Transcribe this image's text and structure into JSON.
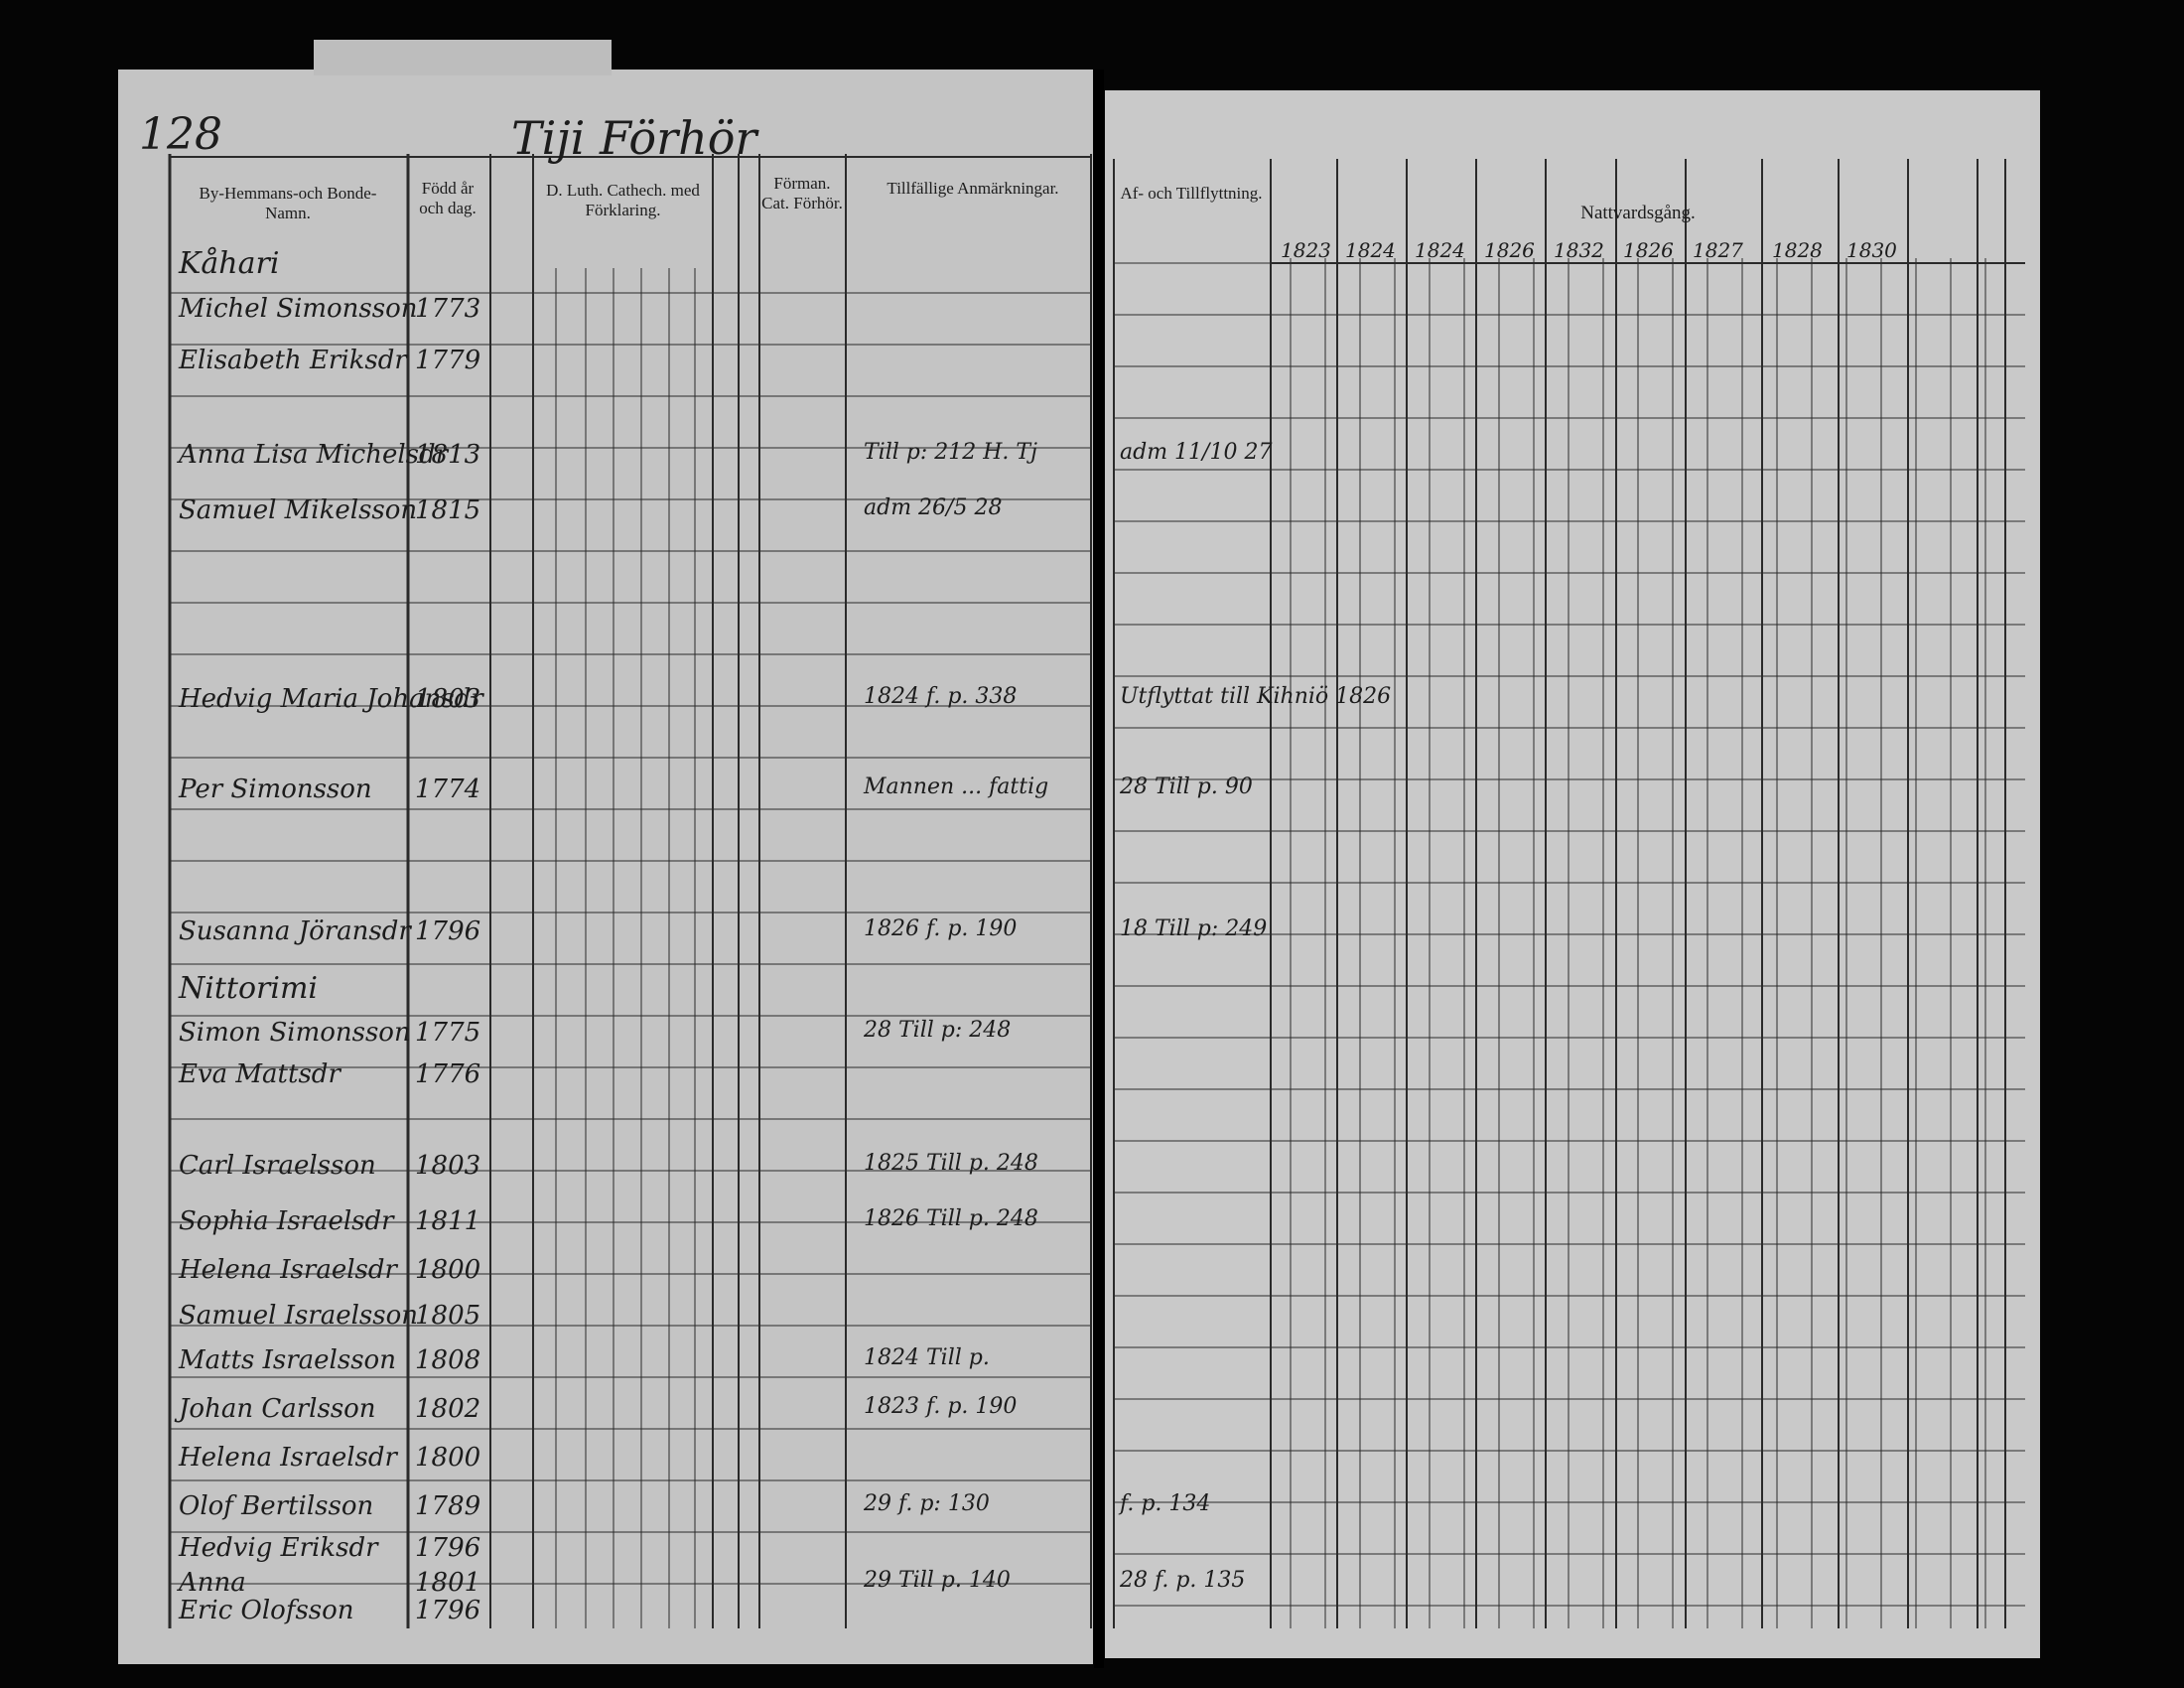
{
  "header": {
    "page_number": "128",
    "title": "Tiji Förhör"
  },
  "left_columns": [
    "By-Hemmans-och Bonde-Namn.",
    "Född år och dag.",
    "D. Luth. Cathech. med Förklaring.",
    "Förman. Cat. Förhör.",
    "Tillfällige Anmärkningar."
  ],
  "right_columns": [
    "Af- och Tillflyttning.",
    "Nattvardsgång."
  ],
  "years": [
    "1823",
    "1824",
    "1824",
    "1826",
    "1832",
    "1826",
    "1827",
    "1828",
    "1830"
  ],
  "sections": [
    "Kåhari",
    "Nittorimi"
  ],
  "rows": [
    {
      "name": "Michel Simonsson",
      "born": "1773"
    },
    {
      "name": "Elisabeth Eriksdr",
      "born": "1779"
    },
    {
      "name": "Anna Lisa Michelsdr",
      "born": "1813",
      "note": "Till p: 212 H. Tj",
      "moved": "adm 11/10 27"
    },
    {
      "name": "Samuel Mikelsson",
      "born": "1815",
      "note": "adm 26/5 28"
    },
    {
      "name": "Hedvig Maria Johansdr",
      "born": "1803",
      "note": "1824 f. p. 338",
      "moved": "Utflyttat till Kihniö 1826"
    },
    {
      "name": "Per Simonsson",
      "born": "1774",
      "note": "Mannen ... fattig",
      "moved": "28 Till p. 90"
    },
    {
      "name": "Susanna Jöransdr",
      "born": "1796",
      "note": "1826 f. p. 190",
      "moved": "18 Till p: 249"
    },
    {
      "name": "Simon Simonsson",
      "born": "1775",
      "note": "28 Till p: 248"
    },
    {
      "name": "Eva Mattsdr",
      "born": "1776"
    },
    {
      "name": "Carl Israelsson",
      "born": "1803",
      "note": "1825 Till p. 248"
    },
    {
      "name": "Sophia Israelsdr",
      "born": "1811",
      "note": "1826 Till p. 248"
    },
    {
      "name": "Helena Israelsdr",
      "born": "1800"
    },
    {
      "name": "Samuel Israelsson",
      "born": "1805"
    },
    {
      "name": "Matts Israelsson",
      "born": "1808",
      "note": "1824 Till p."
    },
    {
      "name": "Johan Carlsson",
      "born": "1802",
      "note": "1823 f. p. 190"
    },
    {
      "name": "Helena Israelsdr",
      "born": "1800"
    },
    {
      "name": "Olof Bertilsson",
      "born": "1789",
      "note": "29 f. p: 130",
      "moved": "f. p. 134"
    },
    {
      "name": "Hedvig Eriksdr",
      "born": "1796"
    },
    {
      "name": "Anna",
      "born": "1801",
      "note": "29 Till p. 140",
      "moved": "28 f. p. 135"
    },
    {
      "name": "Eric Olofsson",
      "born": "1796"
    }
  ]
}
